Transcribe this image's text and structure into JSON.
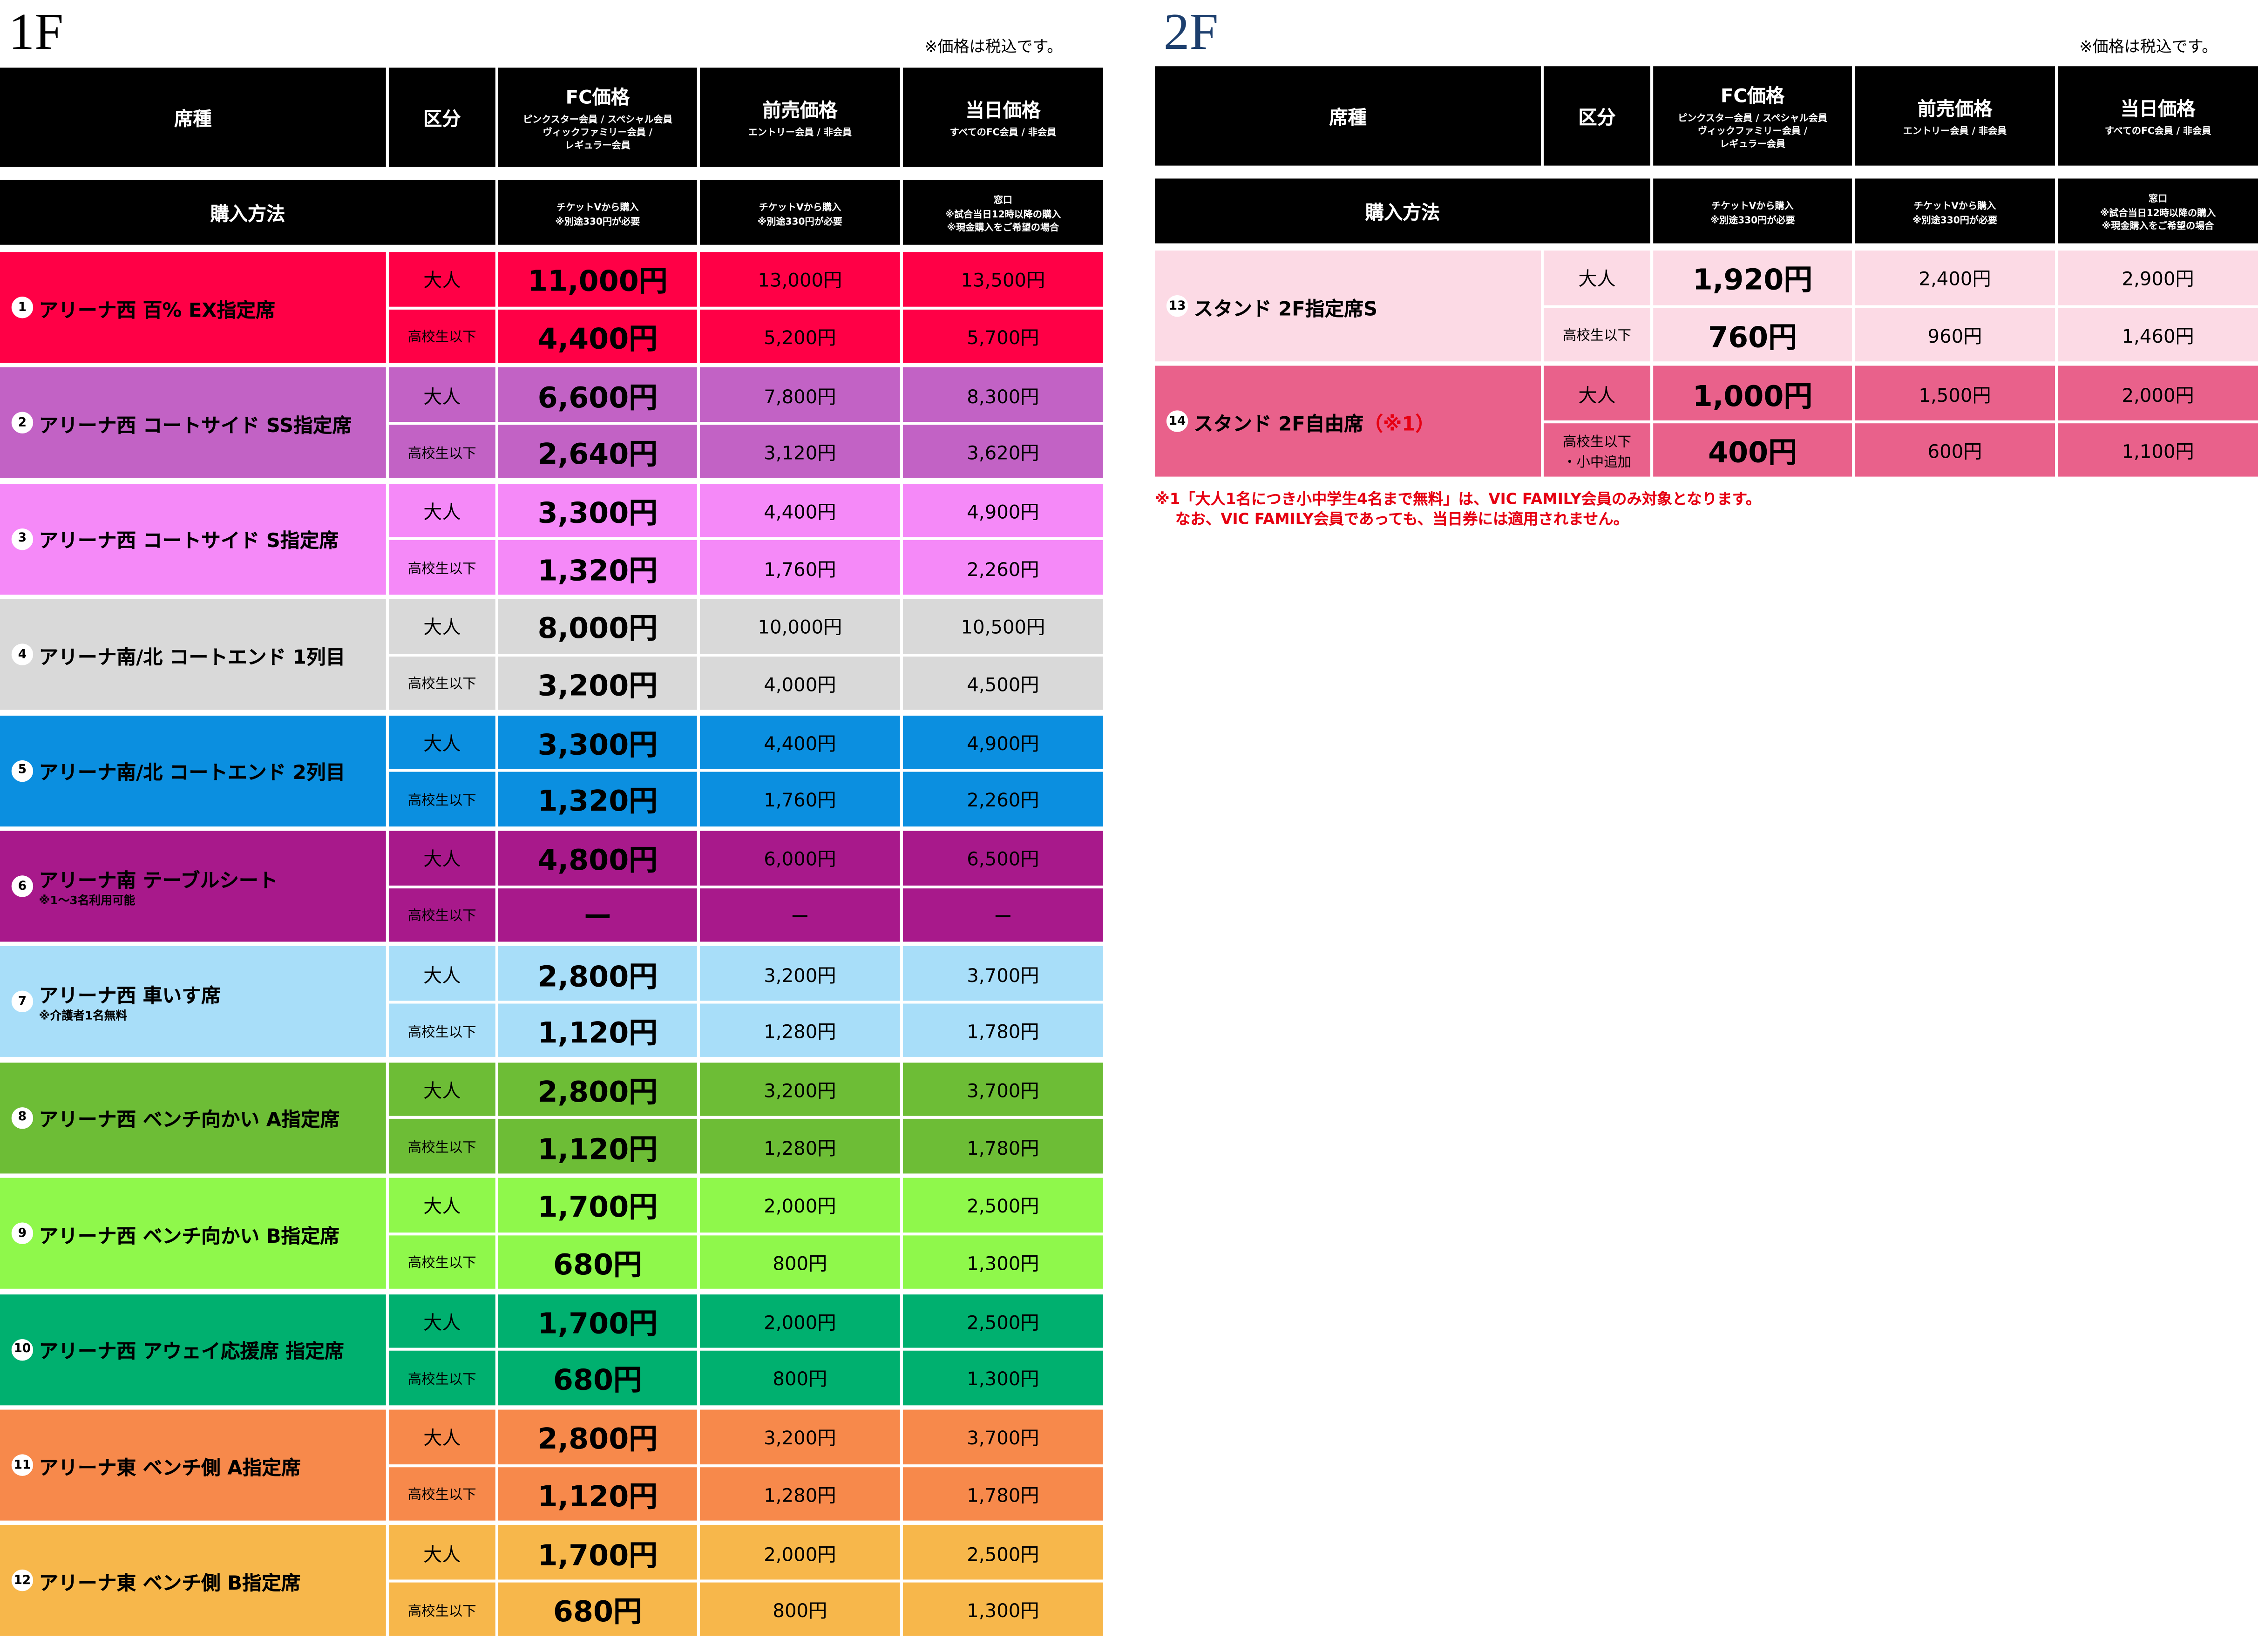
{
  "floors": [
    {
      "title": "1F",
      "tax_note": "※価格は税込です。",
      "header": {
        "seat": "席種",
        "category": "区分",
        "fc": {
          "title": "FC価格",
          "sub": "ピンクスター会員 / スペシャル会員\nヴィックファミリー会員 /\nレギュラー会員"
        },
        "advance": {
          "title": "前売価格",
          "sub": "エントリー会員 / 非会員"
        },
        "dayof": {
          "title": "当日価格",
          "sub": "すべてのFC会員 / 非会員"
        }
      },
      "purchase": {
        "label": "購入方法",
        "fc": {
          "title": "チケットVから購入",
          "sub": "※別途330円が必要"
        },
        "advance": {
          "title": "チケットVから購入",
          "sub": "※別途330円が必要"
        },
        "dayof": {
          "title": "窓口",
          "sub": "※試合当日12時以降の購入\n※現金購入をご希望の場合"
        }
      },
      "seats": [
        {
          "no": "1",
          "name": "アリーナ西 百% EX指定席",
          "color": "#ff0046",
          "rows": [
            [
              "大人",
              "11,000円",
              "13,000円",
              "13,500円"
            ],
            [
              "高校生以下",
              "4,400円",
              "5,200円",
              "5,700円"
            ]
          ]
        },
        {
          "no": "2",
          "name": "アリーナ西 コートサイド SS指定席",
          "color": "#c262c5",
          "rows": [
            [
              "大人",
              "6,600円",
              "7,800円",
              "8,300円"
            ],
            [
              "高校生以下",
              "2,640円",
              "3,120円",
              "3,620円"
            ]
          ]
        },
        {
          "no": "3",
          "name": "アリーナ西 コートサイド S指定席",
          "color": "#f589f8",
          "rows": [
            [
              "大人",
              "3,300円",
              "4,400円",
              "4,900円"
            ],
            [
              "高校生以下",
              "1,320円",
              "1,760円",
              "2,260円"
            ]
          ]
        },
        {
          "no": "4",
          "name": "アリーナ南/北 コートエンド 1列目",
          "color": "#d9d9d9",
          "rows": [
            [
              "大人",
              "8,000円",
              "10,000円",
              "10,500円"
            ],
            [
              "高校生以下",
              "3,200円",
              "4,000円",
              "4,500円"
            ]
          ]
        },
        {
          "no": "5",
          "name": "アリーナ南/北 コートエンド 2列目",
          "color": "#0b8fe0",
          "rows": [
            [
              "大人",
              "3,300円",
              "4,400円",
              "4,900円"
            ],
            [
              "高校生以下",
              "1,320円",
              "1,760円",
              "2,260円"
            ]
          ]
        },
        {
          "no": "6",
          "name": "アリーナ南 テーブルシート",
          "note": "※1〜3名利用可能",
          "color": "#a8198b",
          "rows": [
            [
              "大人",
              "4,800円",
              "6,000円",
              "6,500円"
            ],
            [
              "高校生以下",
              "ー",
              "ー",
              "ー"
            ]
          ]
        },
        {
          "no": "7",
          "name": "アリーナ西 車いす席",
          "note": "※介護者1名無料",
          "color": "#a8def9",
          "rows": [
            [
              "大人",
              "2,800円",
              "3,200円",
              "3,700円"
            ],
            [
              "高校生以下",
              "1,120円",
              "1,280円",
              "1,780円"
            ]
          ]
        },
        {
          "no": "8",
          "name": "アリーナ西 ベンチ向かい A指定席",
          "color": "#6dbd36",
          "rows": [
            [
              "大人",
              "2,800円",
              "3,200円",
              "3,700円"
            ],
            [
              "高校生以下",
              "1,120円",
              "1,280円",
              "1,780円"
            ]
          ]
        },
        {
          "no": "9",
          "name": "アリーナ西 ベンチ向かい B指定席",
          "color": "#8ff84b",
          "rows": [
            [
              "大人",
              "1,700円",
              "2,000円",
              "2,500円"
            ],
            [
              "高校生以下",
              "680円",
              "800円",
              "1,300円"
            ]
          ]
        },
        {
          "no": "10",
          "name": "アリーナ西 アウェイ応援席 指定席",
          "color": "#00b06f",
          "rows": [
            [
              "大人",
              "1,700円",
              "2,000円",
              "2,500円"
            ],
            [
              "高校生以下",
              "680円",
              "800円",
              "1,300円"
            ]
          ]
        },
        {
          "no": "11",
          "name": "アリーナ東 ベンチ側 A指定席",
          "color": "#f7894b",
          "rows": [
            [
              "大人",
              "2,800円",
              "3,200円",
              "3,700円"
            ],
            [
              "高校生以下",
              "1,120円",
              "1,280円",
              "1,780円"
            ]
          ]
        },
        {
          "no": "12",
          "name": "アリーナ東 ベンチ側 B指定席",
          "color": "#f7b74b",
          "rows": [
            [
              "大人",
              "1,700円",
              "2,000円",
              "2,500円"
            ],
            [
              "高校生以下",
              "680円",
              "800円",
              "1,300円"
            ]
          ]
        }
      ]
    },
    {
      "title": "2F",
      "tax_note": "※価格は税込です。",
      "header": {
        "seat": "席種",
        "category": "区分",
        "fc": {
          "title": "FC価格",
          "sub": "ピンクスター会員 / スペシャル会員\nヴィックファミリー会員 /\nレギュラー会員"
        },
        "advance": {
          "title": "前売価格",
          "sub": "エントリー会員 / 非会員"
        },
        "dayof": {
          "title": "当日価格",
          "sub": "すべてのFC会員 / 非会員"
        }
      },
      "purchase": {
        "label": "購入方法",
        "fc": {
          "title": "チケットVから購入",
          "sub": "※別途330円が必要"
        },
        "advance": {
          "title": "チケットVから購入",
          "sub": "※別途330円が必要"
        },
        "dayof": {
          "title": "窓口",
          "sub": "※試合当日12時以降の購入\n※現金購入をご希望の場合"
        }
      },
      "seats": [
        {
          "no": "13",
          "name": "スタンド 2F指定席S",
          "color": "#fcdae5",
          "rows": [
            [
              "大人",
              "1,920円",
              "2,400円",
              "2,900円"
            ],
            [
              "高校生以下",
              "760円",
              "960円",
              "1,460円"
            ]
          ]
        },
        {
          "no": "14",
          "name": "スタンド 2F自由席",
          "mark": "（※1）",
          "color": "#e9618b",
          "rows": [
            [
              "大人",
              "1,000円",
              "1,500円",
              "2,000円"
            ],
            [
              "高校生以下\n・小中追加",
              "400円",
              "600円",
              "1,100円"
            ]
          ]
        }
      ],
      "footnote": "※1「大人1名につき小中学生4名まで無料」は、VIC FAMILY会員のみ対象となります。\n　 なお、VIC FAMILY会員であっても、当日券には適用されません。"
    }
  ]
}
